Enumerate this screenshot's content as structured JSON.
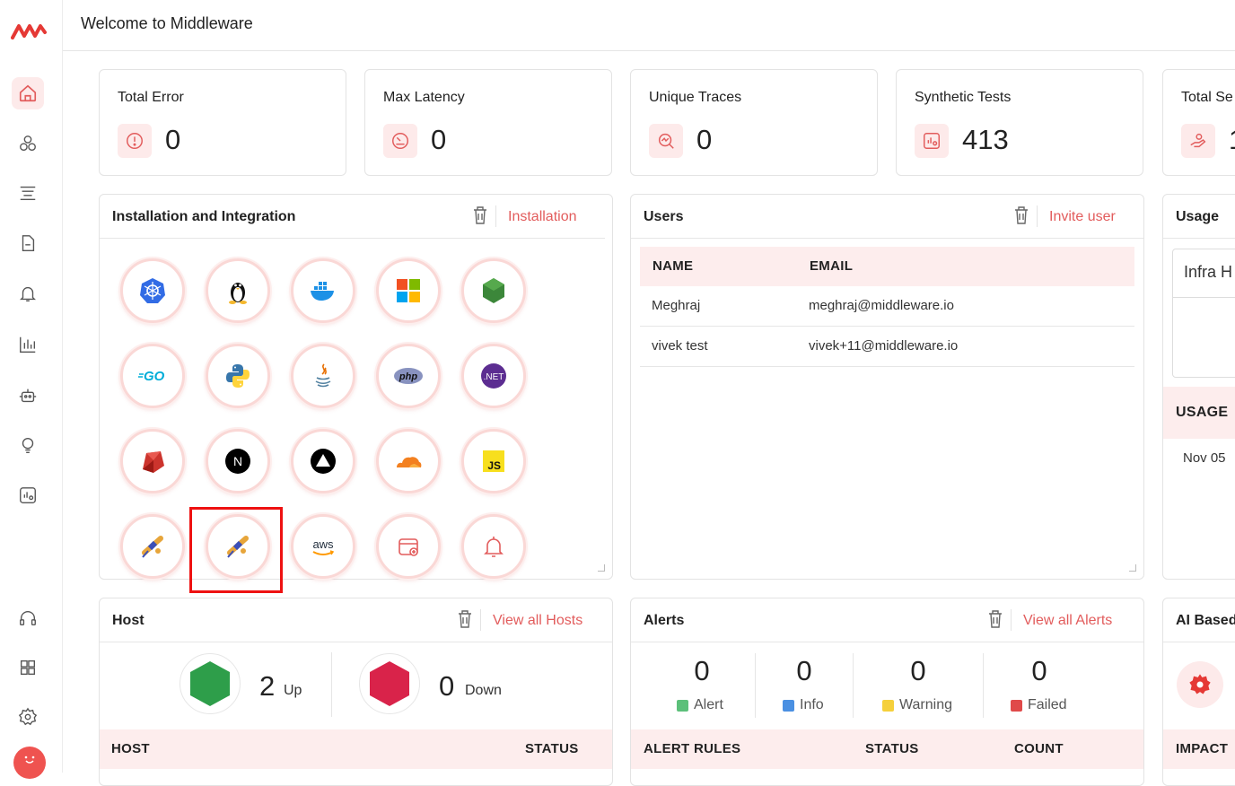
{
  "header": {
    "title": "Welcome to Middleware"
  },
  "sidebar": {
    "items": [
      {
        "icon": "home-icon"
      },
      {
        "icon": "services-icon"
      },
      {
        "icon": "logs-icon"
      },
      {
        "icon": "document-icon"
      },
      {
        "icon": "bell-icon"
      },
      {
        "icon": "bar-chart-icon"
      },
      {
        "icon": "robot-icon"
      },
      {
        "icon": "bulb-icon"
      },
      {
        "icon": "synthetic-icon"
      },
      {
        "icon": "headset-icon"
      },
      {
        "icon": "grid-icon"
      },
      {
        "icon": "settings-icon"
      }
    ]
  },
  "stats": [
    {
      "label": "Total Error",
      "value": "0",
      "icon": "error-icon"
    },
    {
      "label": "Max Latency",
      "value": "0",
      "icon": "latency-icon"
    },
    {
      "label": "Unique Traces",
      "value": "0",
      "icon": "traces-icon"
    },
    {
      "label": "Synthetic Tests",
      "value": "413",
      "icon": "synthetic-icon"
    },
    {
      "label": "Total Se",
      "value": "1",
      "icon": "hand-icon"
    }
  ],
  "installation": {
    "title": "Installation and Integration",
    "link": "Installation",
    "aws_label": "aws",
    "go_label": "GO",
    "php_label": "php",
    "net_label": ".NET",
    "js_label": "JS",
    "next_label": "N",
    "icons": [
      "kubernetes-icon",
      "linux-icon",
      "docker-icon",
      "windows-icon",
      "nodejs-icon",
      "go-icon",
      "python-icon",
      "java-icon",
      "php-icon",
      "dotnet-icon",
      "ruby-icon",
      "nextjs-icon",
      "vercel-icon",
      "cloudflare-icon",
      "javascript-icon",
      "telescope-icon",
      "telescope-icon",
      "aws-icon",
      "database-add-icon",
      "alert-bell-icon"
    ]
  },
  "users": {
    "title": "Users",
    "link": "Invite user",
    "columns": [
      "NAME",
      "EMAIL"
    ],
    "rows": [
      {
        "name": "Meghraj",
        "email": "meghraj@middleware.io"
      },
      {
        "name": "vivek test",
        "email": "vivek+11@middleware.io"
      }
    ]
  },
  "usage": {
    "title": "Usage",
    "select_value": "Infra H",
    "column": "USAGE",
    "row": "Nov 05"
  },
  "host": {
    "title": "Host",
    "link": "View all Hosts",
    "up_count": "2",
    "up_label": "Up",
    "down_count": "0",
    "down_label": "Down",
    "columns": [
      "HOST",
      "STATUS"
    ]
  },
  "alerts": {
    "title": "Alerts",
    "link": "View all Alerts",
    "stats": [
      {
        "value": "0",
        "label": "Alert",
        "color": "#5cc07a"
      },
      {
        "value": "0",
        "label": "Info",
        "color": "#4a90e2"
      },
      {
        "value": "0",
        "label": "Warning",
        "color": "#f5d03b"
      },
      {
        "value": "0",
        "label": "Failed",
        "color": "#e04a4a"
      }
    ],
    "columns": [
      "ALERT RULES",
      "STATUS",
      "COUNT"
    ]
  },
  "ai": {
    "title": "AI Based",
    "column": "IMPACT"
  },
  "colors": {
    "accent": "#e25c5c",
    "accent_bg": "#fdeaea"
  }
}
